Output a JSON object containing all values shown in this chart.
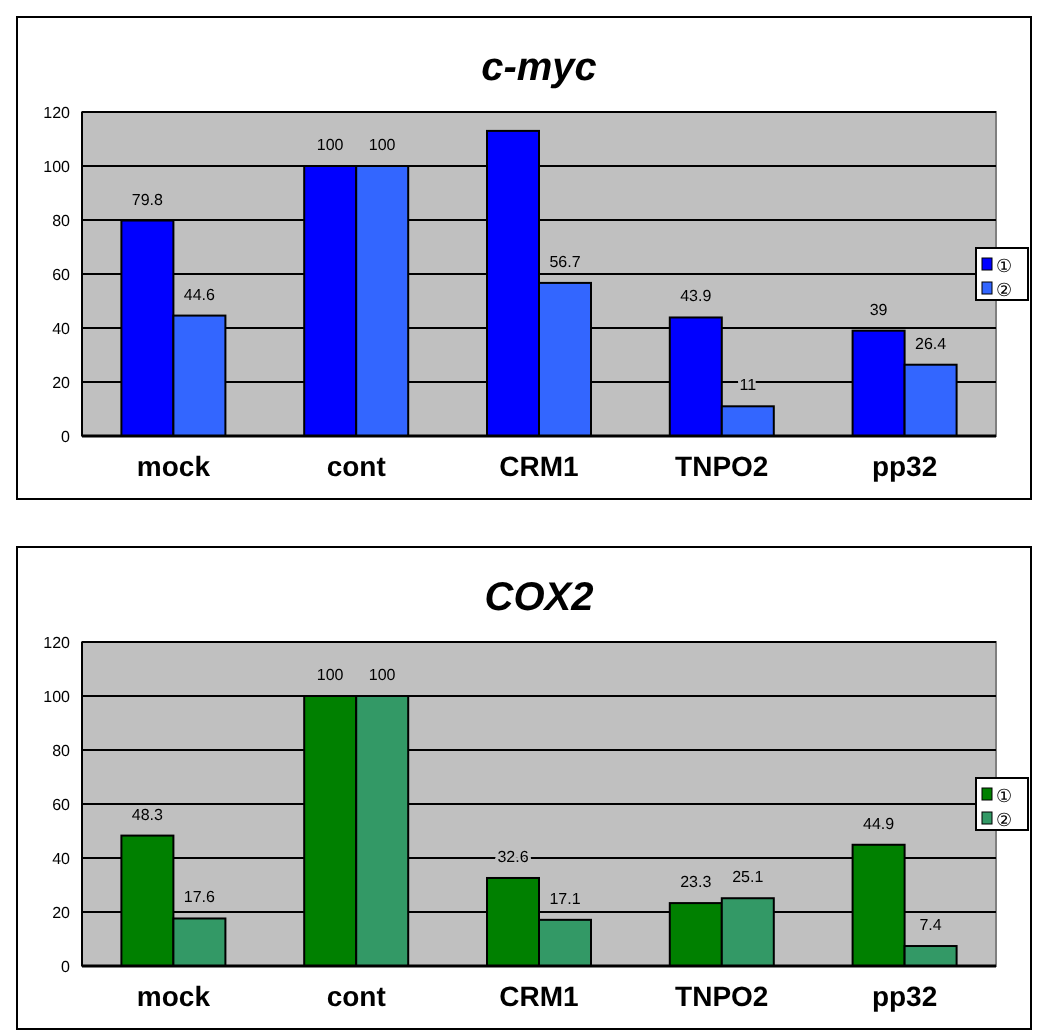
{
  "chart_data": [
    {
      "type": "bar",
      "title": "c-myc",
      "categories": [
        "mock",
        "cont",
        "CRM1",
        "TNPO2",
        "pp32"
      ],
      "series": [
        {
          "name": "①",
          "color": "#0000ff",
          "values": [
            79.8,
            100,
            113,
            43.9,
            39
          ],
          "value_labels": [
            "79.8",
            "100",
            null,
            "43.9",
            "39"
          ]
        },
        {
          "name": "②",
          "color": "#3366ff",
          "values": [
            44.6,
            100,
            56.7,
            11,
            26.4
          ],
          "value_labels": [
            "44.6",
            "100",
            "56.7",
            "11",
            "26.4"
          ]
        }
      ],
      "ylim": [
        0,
        120
      ],
      "yticks": [
        0,
        20,
        40,
        60,
        80,
        100,
        120
      ],
      "grid": "y",
      "legend": "right"
    },
    {
      "type": "bar",
      "title": "COX2",
      "categories": [
        "mock",
        "cont",
        "CRM1",
        "TNPO2",
        "pp32"
      ],
      "series": [
        {
          "name": "①",
          "color": "#008000",
          "values": [
            48.3,
            100,
            32.6,
            23.3,
            44.9
          ]
        },
        {
          "name": "②",
          "color": "#339966",
          "values": [
            17.6,
            100,
            17.1,
            25.1,
            7.4
          ]
        }
      ],
      "ylim": [
        0,
        120
      ],
      "yticks": [
        0,
        20,
        40,
        60,
        80,
        100,
        120
      ],
      "grid": "y",
      "legend": "right",
      "data_labels": true
    }
  ]
}
